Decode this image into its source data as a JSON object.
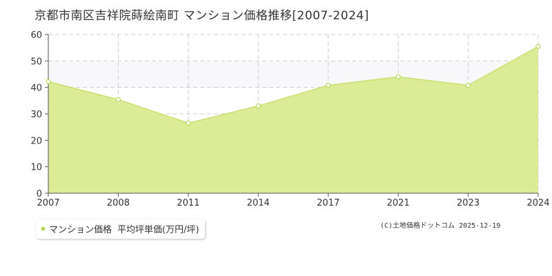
{
  "title": "京都市南区吉祥院蒔絵南町 マンション価格推移[2007-2024]",
  "legend": {
    "series_label": "マンション価格",
    "unit_label": "平均坪単価(万円/坪)"
  },
  "copyright": "(C)土地価格ドットコム 2025-12-19",
  "colors": {
    "area_fill": "#dcec96",
    "line": "#c8e06e",
    "band": "#f8f7f9",
    "grid": "#cccccc",
    "axis": "#555555",
    "marker_fill": "#ffffff",
    "marker_stroke": "#b8d858",
    "legend_marker": "#b8d858"
  },
  "chart_data": {
    "type": "area",
    "title": "京都市南区吉祥院蒔絵南町 マンション価格推移[2007-2024]",
    "xlabel": "",
    "ylabel": "",
    "categories": [
      "2007",
      "2008",
      "2011",
      "2014",
      "2017",
      "2021",
      "2023",
      "2024"
    ],
    "series": [
      {
        "name": "マンション価格",
        "values": [
          42.2,
          35.4,
          26.5,
          33.0,
          40.8,
          44.0,
          40.8,
          55.5
        ]
      }
    ],
    "ylim": [
      0,
      60
    ],
    "yticks": [
      0,
      10,
      20,
      30,
      40,
      50,
      60
    ],
    "grid": true,
    "shaded_band": [
      40,
      50
    ],
    "legend_position": "bottom-left"
  }
}
